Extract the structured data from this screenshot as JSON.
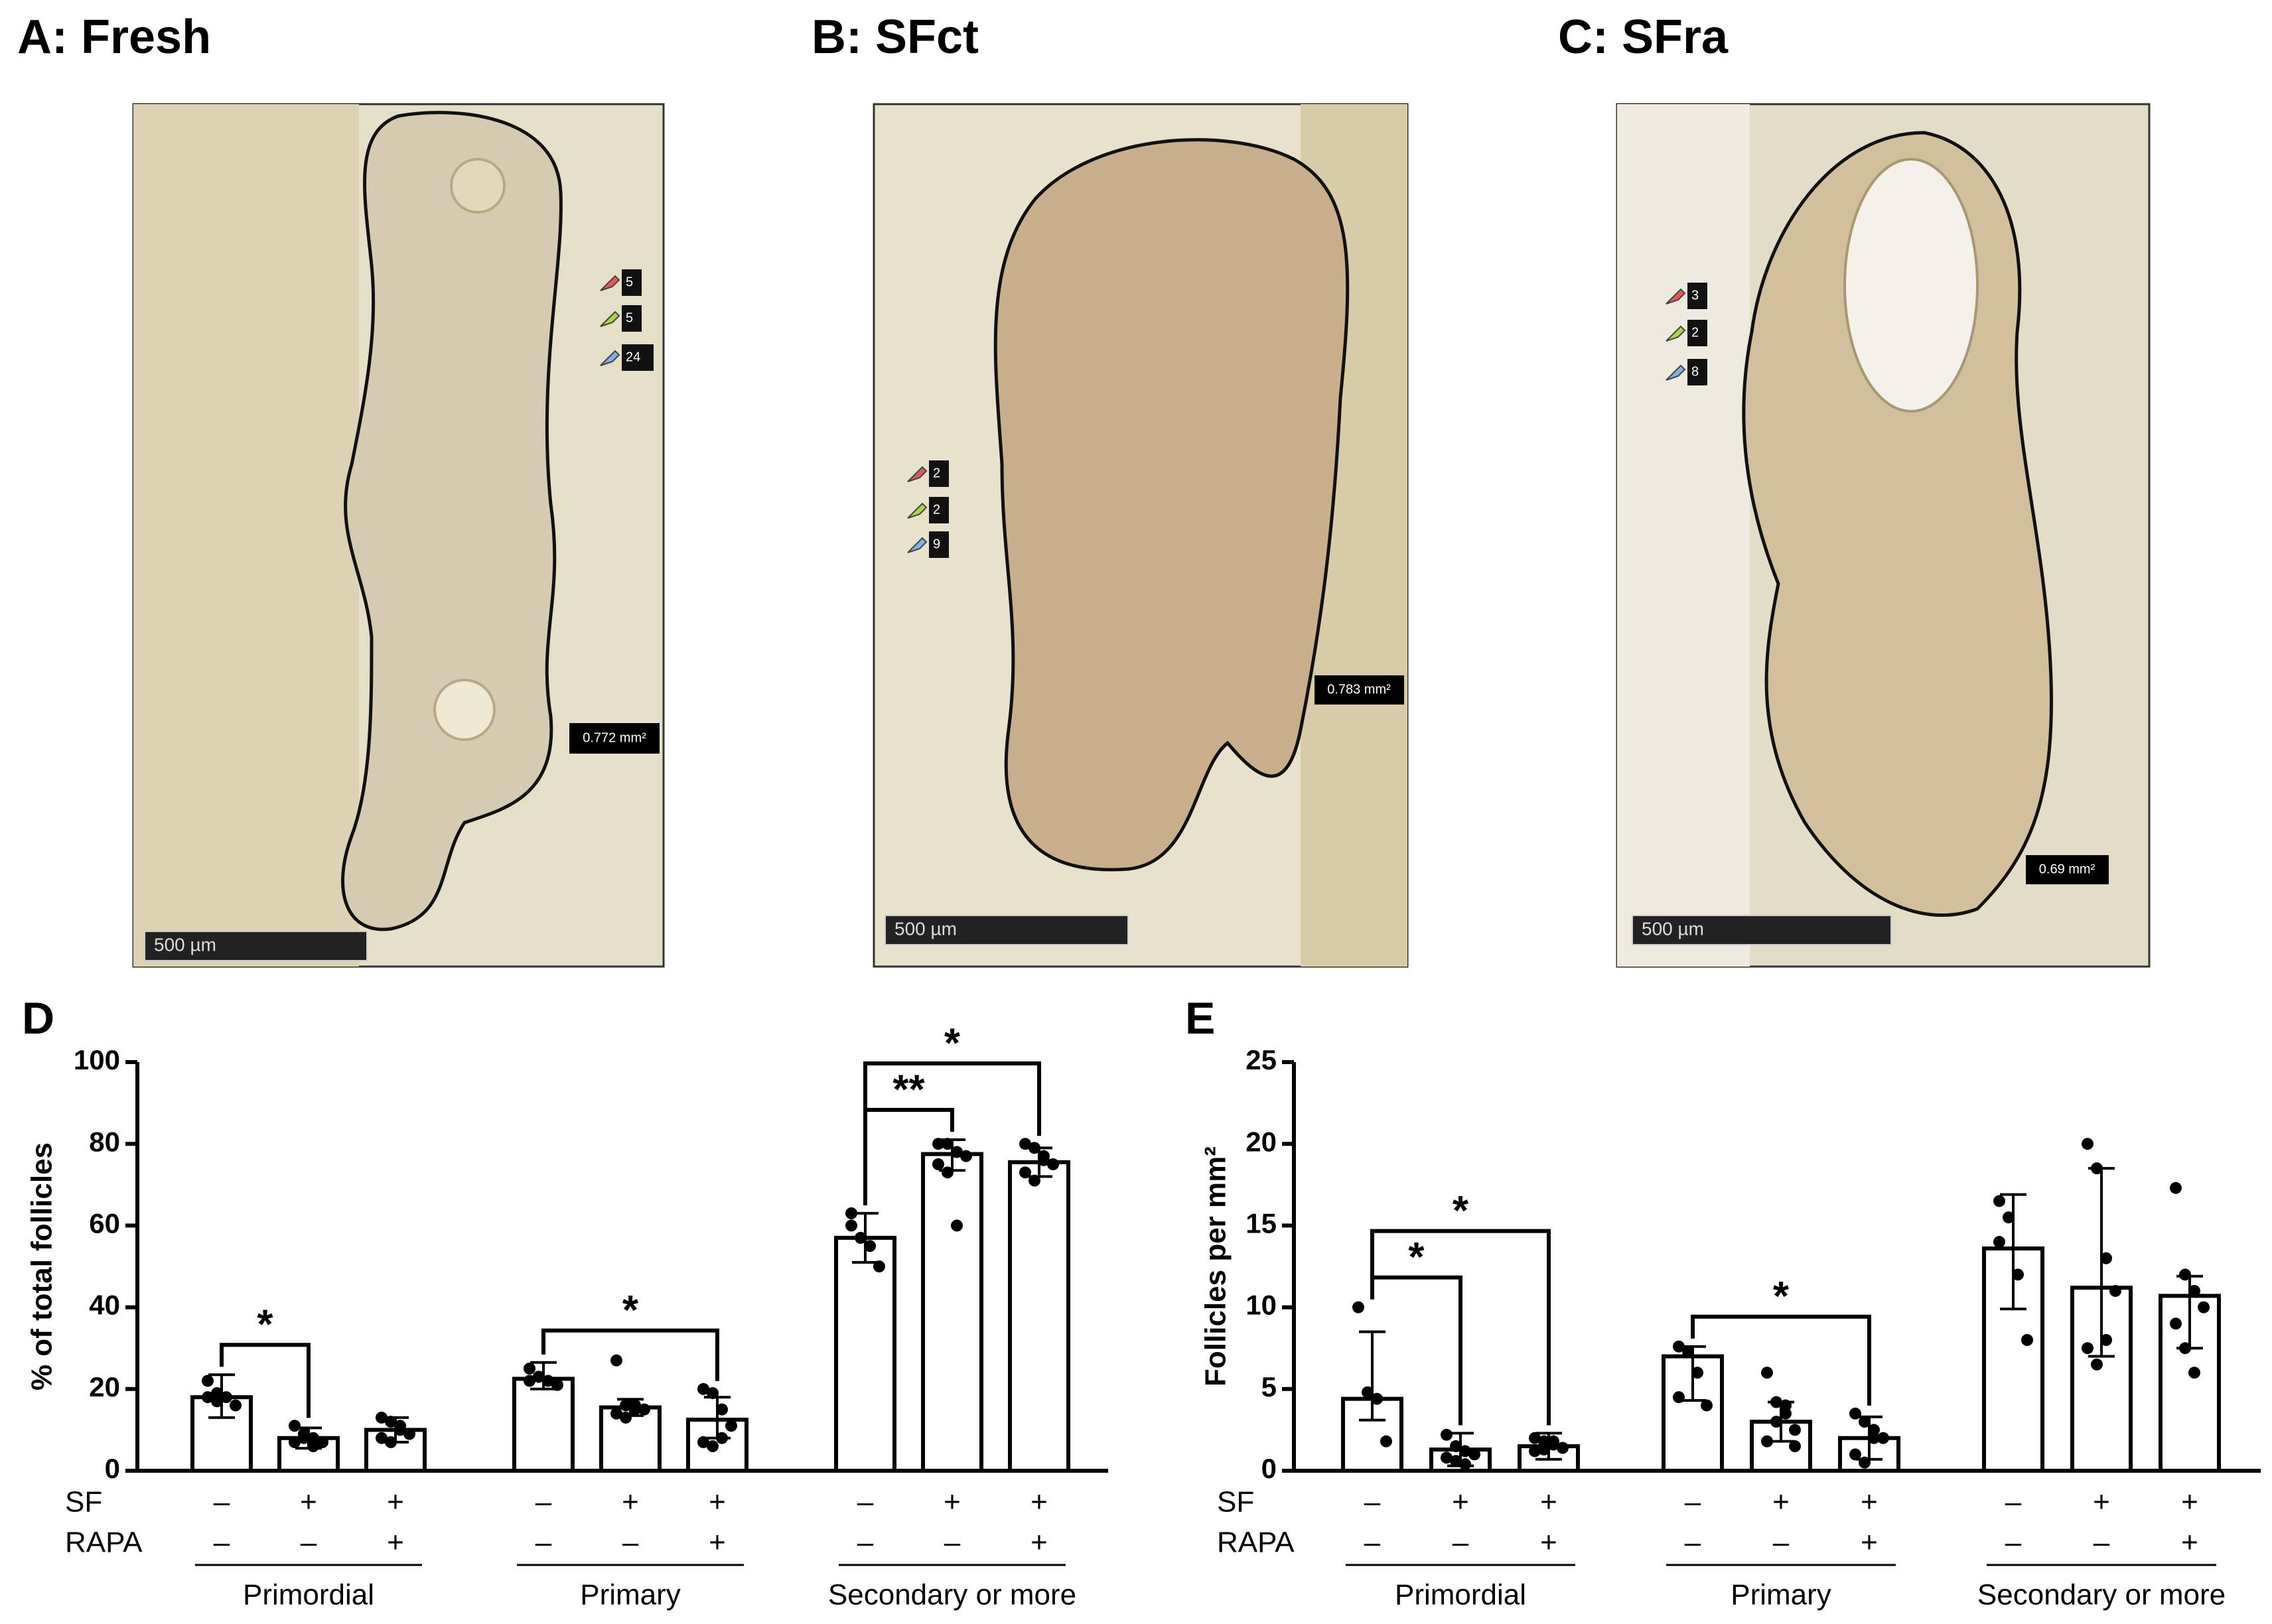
{
  "panels": [
    {
      "title": "A: Fresh",
      "scale_bar": "500 µm",
      "area": "0.772 mm²",
      "counts": [
        5,
        5,
        24
      ]
    },
    {
      "title": "B: SFct",
      "scale_bar": "500 µm",
      "area": "0.783 mm²",
      "counts": [
        2,
        2,
        9
      ]
    },
    {
      "title": "C: SFra",
      "scale_bar": "500 µm",
      "area": "0.69 mm²",
      "counts": [
        3,
        2,
        8
      ]
    }
  ],
  "count_colors": [
    "#e05a5a",
    "#a8d84a",
    "#7fb0e8"
  ],
  "chart_data": [
    {
      "type": "bar",
      "panel": "D",
      "y_label": "% of total follicles",
      "ylim": [
        0,
        100
      ],
      "yticks": [
        0,
        20,
        40,
        60,
        80,
        100
      ],
      "categories": [
        "Primordial",
        "Primary",
        "Secondary or more"
      ],
      "row_labels": [
        "SF",
        "RAPA"
      ],
      "series": [
        {
          "color": "#ffffff",
          "conditions": [
            "–",
            "–"
          ],
          "values": [
            18,
            22.5,
            57
          ],
          "errors": [
            [
              5,
              5.5
            ],
            [
              2.5,
              4
            ],
            [
              6,
              6
            ]
          ],
          "points": [
            [
              22,
              19,
              18,
              16,
              18,
              17
            ],
            [
              25,
              23,
              22,
              21,
              22,
              23
            ],
            [
              63,
              57,
              55,
              50,
              60
            ]
          ]
        },
        {
          "color": "#ffffff",
          "conditions": [
            "+",
            "–"
          ],
          "values": [
            8,
            15.5,
            77.5
          ],
          "errors": [
            [
              2.5,
              2.5
            ],
            [
              2,
              2
            ],
            [
              4,
              3.5
            ]
          ],
          "points": [
            [
              11,
              9,
              8,
              7,
              7,
              8,
              6
            ],
            [
              27,
              16,
              15,
              15,
              14,
              13,
              16
            ],
            [
              80,
              80,
              78,
              77,
              75,
              73,
              60
            ]
          ]
        },
        {
          "color": "#ffffff",
          "conditions": [
            "+",
            "+"
          ],
          "values": [
            10,
            12.5,
            75.5
          ],
          "errors": [
            [
              3,
              3
            ],
            [
              4.5,
              5.5
            ],
            [
              3.5,
              3.5
            ]
          ],
          "points": [
            [
              13,
              12,
              10,
              9,
              8,
              7,
              11
            ],
            [
              20,
              19,
              15,
              11,
              7,
              6,
              8
            ],
            [
              80,
              79,
              76,
              75,
              73,
              71,
              77
            ]
          ]
        }
      ],
      "annotations": [
        {
          "group": 0,
          "from": 0,
          "to": 1,
          "label": "*"
        },
        {
          "group": 1,
          "from": 0,
          "to": 2,
          "label": "*"
        },
        {
          "group": 2,
          "from": 0,
          "to": 1,
          "label": "**"
        },
        {
          "group": 2,
          "from": 0,
          "to": 2,
          "label": "*"
        }
      ]
    },
    {
      "type": "bar",
      "panel": "E",
      "y_label": "Follicles per mm²",
      "ylim": [
        0,
        25
      ],
      "yticks": [
        0,
        5,
        10,
        15,
        20,
        25
      ],
      "categories": [
        "Primordial",
        "Primary",
        "Secondary or more"
      ],
      "row_labels": [
        "SF",
        "RAPA"
      ],
      "series": [
        {
          "color": "#ffffff",
          "conditions": [
            "–",
            "–"
          ],
          "values": [
            4.4,
            7.0,
            13.6
          ],
          "errors": [
            [
              1.3,
              4.1
            ],
            [
              2.7,
              0.6
            ],
            [
              3.7,
              3.3
            ]
          ],
          "points": [
            [
              10,
              4.8,
              4.4,
              1.8
            ],
            [
              7.6,
              7.3,
              6.0,
              4.0,
              4.5
            ],
            [
              16.5,
              15.5,
              12,
              8,
              14
            ]
          ]
        },
        {
          "color": "#ffffff",
          "conditions": [
            "+",
            "–"
          ],
          "values": [
            1.3,
            3.0,
            11.2
          ],
          "errors": [
            [
              1,
              1
            ],
            [
              1.2,
              1.2
            ],
            [
              4.2,
              7.3
            ]
          ],
          "points": [
            [
              2.2,
              1.5,
              1.2,
              1,
              0.8,
              0.6,
              0.4
            ],
            [
              6,
              4.2,
              4,
              2.5,
              1.8,
              3,
              3.5,
              1.5
            ],
            [
              20,
              18.5,
              13,
              11,
              7.5,
              6.5,
              8
            ]
          ]
        },
        {
          "color": "#ffffff",
          "conditions": [
            "+",
            "+"
          ],
          "values": [
            1.5,
            2.0,
            10.7
          ],
          "errors": [
            [
              0.8,
              0.8
            ],
            [
              1.3,
              1.3
            ],
            [
              3.2,
              1.2
            ]
          ],
          "points": [
            [
              2,
              1.8,
              1.6,
              1.4,
              1.2,
              1.3,
              1.8
            ],
            [
              3.5,
              3,
              2,
              2,
              1,
              0.5,
              2.5
            ],
            [
              17.3,
              12,
              11,
              10,
              9,
              7.5,
              6
            ]
          ]
        }
      ],
      "annotations": [
        {
          "group": 0,
          "from": 0,
          "to": 1,
          "label": "*"
        },
        {
          "group": 0,
          "from": 0,
          "to": 2,
          "label": "*"
        },
        {
          "group": 1,
          "from": 0,
          "to": 2,
          "label": "*"
        }
      ]
    }
  ]
}
